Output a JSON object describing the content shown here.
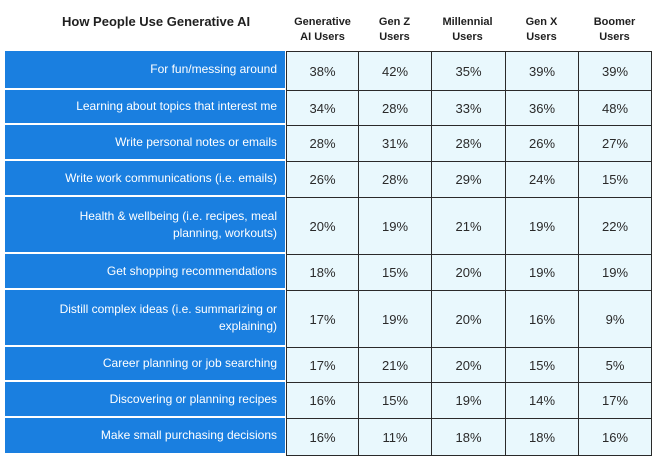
{
  "chart_data": {
    "type": "table",
    "title": "How People Use Generative AI",
    "columns": [
      "Generative\nAI Users",
      "Gen Z\nUsers",
      "Millennial\nUsers",
      "Gen X\nUsers",
      "Boomer\nUsers"
    ],
    "rows": [
      {
        "label": "For fun/messing around",
        "values": [
          "38%",
          "42%",
          "35%",
          "39%",
          "39%"
        ]
      },
      {
        "label": "Learning about topics that interest me",
        "values": [
          "34%",
          "28%",
          "33%",
          "36%",
          "48%"
        ]
      },
      {
        "label": "Write personal notes or emails",
        "values": [
          "28%",
          "31%",
          "28%",
          "26%",
          "27%"
        ]
      },
      {
        "label": "Write work communications (i.e. emails)",
        "values": [
          "26%",
          "28%",
          "29%",
          "24%",
          "15%"
        ]
      },
      {
        "label": "Health & wellbeing (i.e. recipes, meal\nplanning, workouts)",
        "values": [
          "20%",
          "19%",
          "21%",
          "19%",
          "22%"
        ]
      },
      {
        "label": "Get shopping recommendations",
        "values": [
          "18%",
          "15%",
          "20%",
          "19%",
          "19%"
        ]
      },
      {
        "label": "Distill complex ideas (i.e. summarizing or\nexplaining)",
        "values": [
          "17%",
          "19%",
          "20%",
          "16%",
          "9%"
        ]
      },
      {
        "label": "Career planning or job searching",
        "values": [
          "17%",
          "21%",
          "20%",
          "15%",
          "5%"
        ]
      },
      {
        "label": "Discovering or planning recipes",
        "values": [
          "16%",
          "15%",
          "19%",
          "14%",
          "17%"
        ]
      },
      {
        "label": "Make small purchasing decisions",
        "values": [
          "16%",
          "11%",
          "18%",
          "18%",
          "16%"
        ]
      }
    ]
  },
  "colors": {
    "label_fill": "#1a7fe0",
    "cell_fill": "#e9f8fd",
    "cell_border": "#2a2a2a"
  }
}
